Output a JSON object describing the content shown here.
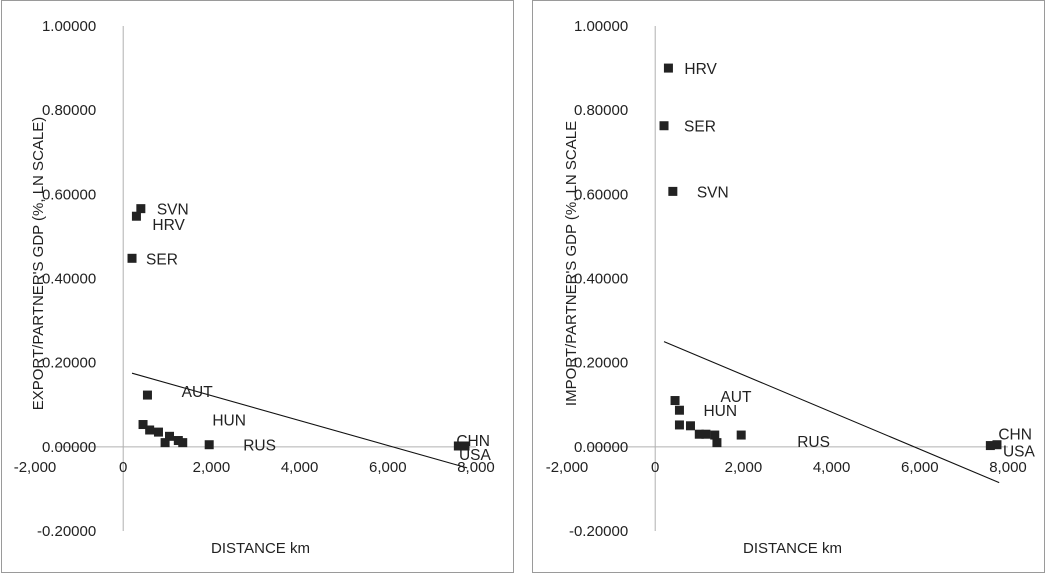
{
  "chart_data": [
    {
      "type": "scatter",
      "title": "",
      "xlabel": "DISTANCE  km",
      "ylabel": "EXPORT/PARTNER'S GDP (%, LN SCALE)",
      "xlim": [
        -2000,
        8000
      ],
      "ylim": [
        -0.2,
        1.0
      ],
      "x_ticks": [
        "-2,000",
        "0",
        "2,000",
        "4,000",
        "6,000",
        "8,000"
      ],
      "y_ticks": [
        "-0.20000",
        "0.00000",
        "0.20000",
        "0.40000",
        "0.60000",
        "0.80000",
        "1.00000"
      ],
      "points": [
        {
          "x": 400,
          "y": 0.566,
          "label": "SVN"
        },
        {
          "x": 300,
          "y": 0.548,
          "label": "HRV"
        },
        {
          "x": 200,
          "y": 0.448,
          "label": "SER"
        },
        {
          "x": 550,
          "y": 0.123,
          "label": ""
        },
        {
          "x": 450,
          "y": 0.053,
          "label": ""
        },
        {
          "x": 600,
          "y": 0.04,
          "label": "AUT"
        },
        {
          "x": 800,
          "y": 0.035,
          "label": ""
        },
        {
          "x": 1050,
          "y": 0.025,
          "label": ""
        },
        {
          "x": 950,
          "y": 0.01,
          "label": ""
        },
        {
          "x": 1250,
          "y": 0.015,
          "label": "HUN"
        },
        {
          "x": 1350,
          "y": 0.01,
          "label": ""
        },
        {
          "x": 1950,
          "y": 0.005,
          "label": "RUS"
        },
        {
          "x": 7600,
          "y": 0.002,
          "label": "CHN"
        },
        {
          "x": 7750,
          "y": 0.002,
          "label": "USA"
        }
      ],
      "trendline": {
        "x": [
          200,
          7800
        ],
        "y": [
          0.175,
          -0.05
        ]
      }
    },
    {
      "type": "scatter",
      "title": "",
      "xlabel": "DISTANCE  km",
      "ylabel": "IMPORT/PARTNER'S  GDP (%, LN SCALE",
      "xlim": [
        -2000,
        8000
      ],
      "ylim": [
        -0.2,
        1.0
      ],
      "x_ticks": [
        "-2,000",
        "0",
        "2,000",
        "4,000",
        "6,000",
        "8,000"
      ],
      "y_ticks": [
        "-0.20000",
        "0.00000",
        "0.20000",
        "0.40000",
        "0.60000",
        "0.80000",
        "1.00000"
      ],
      "points": [
        {
          "x": 300,
          "y": 0.9,
          "label": "HRV"
        },
        {
          "x": 200,
          "y": 0.763,
          "label": "SER"
        },
        {
          "x": 400,
          "y": 0.607,
          "label": "SVN"
        },
        {
          "x": 450,
          "y": 0.11,
          "label": ""
        },
        {
          "x": 550,
          "y": 0.087,
          "label": "HUN"
        },
        {
          "x": 550,
          "y": 0.052,
          "label": ""
        },
        {
          "x": 800,
          "y": 0.05,
          "label": "AUT"
        },
        {
          "x": 1000,
          "y": 0.03,
          "label": ""
        },
        {
          "x": 1150,
          "y": 0.03,
          "label": ""
        },
        {
          "x": 1350,
          "y": 0.028,
          "label": ""
        },
        {
          "x": 1400,
          "y": 0.01,
          "label": ""
        },
        {
          "x": 1950,
          "y": 0.028,
          "label": "RUS"
        },
        {
          "x": 7600,
          "y": 0.003,
          "label": "CHN"
        },
        {
          "x": 7750,
          "y": 0.005,
          "label": "USA"
        }
      ],
      "trendline": {
        "x": [
          200,
          7800
        ],
        "y": [
          0.25,
          -0.085
        ]
      }
    }
  ]
}
